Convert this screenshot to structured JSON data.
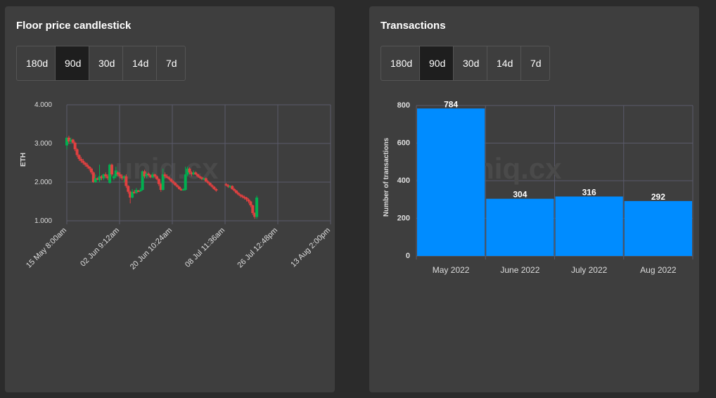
{
  "panels": {
    "candlestick": {
      "title": "Floor price candlestick",
      "tabs": [
        "180d",
        "90d",
        "30d",
        "14d",
        "7d"
      ],
      "active_tab": "90d"
    },
    "transactions": {
      "title": "Transactions",
      "tabs": [
        "180d",
        "90d",
        "30d",
        "14d",
        "7d"
      ],
      "active_tab": "90d"
    }
  },
  "watermark": "uniq.cx",
  "colors": {
    "up": "#00b050",
    "down": "#e04040",
    "bar": "#008cff",
    "grid": "#5a5a6a"
  },
  "chart_data": [
    {
      "type": "candlestick",
      "ylabel": "ETH",
      "ylim": [
        1.0,
        4.0
      ],
      "yticks": [
        "1.000",
        "2.000",
        "3.000",
        "4.000"
      ],
      "xticks": [
        "15 May 8:00am",
        "02 Jun 9:12am",
        "20 Jun 10:24am",
        "08 Jul 11:36am",
        "26 Jul 12:48pm",
        "13 Aug 2:00pm"
      ],
      "xlim_days": [
        0,
        90.25
      ],
      "candles": [
        {
          "d": 0.0,
          "o": 2.95,
          "h": 3.15,
          "l": 2.85,
          "c": 3.15
        },
        {
          "d": 0.7,
          "o": 3.15,
          "h": 3.2,
          "l": 3.0,
          "c": 3.05
        },
        {
          "d": 1.4,
          "o": 3.05,
          "h": 3.15,
          "l": 3.0,
          "c": 3.1
        },
        {
          "d": 2.1,
          "o": 3.1,
          "h": 3.12,
          "l": 3.0,
          "c": 3.02
        },
        {
          "d": 2.8,
          "o": 3.02,
          "h": 3.05,
          "l": 2.8,
          "c": 2.85
        },
        {
          "d": 3.5,
          "o": 2.85,
          "h": 2.88,
          "l": 2.65,
          "c": 2.7
        },
        {
          "d": 4.2,
          "o": 2.7,
          "h": 2.72,
          "l": 2.55,
          "c": 2.6
        },
        {
          "d": 4.9,
          "o": 2.6,
          "h": 2.65,
          "l": 2.5,
          "c": 2.55
        },
        {
          "d": 5.6,
          "o": 2.55,
          "h": 2.6,
          "l": 2.45,
          "c": 2.5
        },
        {
          "d": 6.3,
          "o": 2.5,
          "h": 2.52,
          "l": 2.4,
          "c": 2.45
        },
        {
          "d": 7.0,
          "o": 2.45,
          "h": 2.5,
          "l": 2.35,
          "c": 2.4
        },
        {
          "d": 7.7,
          "o": 2.4,
          "h": 2.42,
          "l": 2.3,
          "c": 2.35
        },
        {
          "d": 8.4,
          "o": 2.35,
          "h": 2.38,
          "l": 2.2,
          "c": 2.25
        },
        {
          "d": 9.1,
          "o": 2.25,
          "h": 2.28,
          "l": 1.98,
          "c": 2.0
        },
        {
          "d": 9.8,
          "o": 2.0,
          "h": 2.2,
          "l": 1.98,
          "c": 2.1
        },
        {
          "d": 10.5,
          "o": 2.1,
          "h": 2.12,
          "l": 2.05,
          "c": 2.08
        },
        {
          "d": 11.2,
          "o": 2.05,
          "h": 2.45,
          "l": 2.0,
          "c": 2.15
        },
        {
          "d": 11.9,
          "o": 2.15,
          "h": 2.18,
          "l": 2.05,
          "c": 2.1
        },
        {
          "d": 12.6,
          "o": 2.1,
          "h": 2.22,
          "l": 2.05,
          "c": 2.2
        },
        {
          "d": 13.3,
          "o": 2.2,
          "h": 2.25,
          "l": 2.1,
          "c": 2.15
        },
        {
          "d": 14.0,
          "o": 2.15,
          "h": 2.2,
          "l": 2.05,
          "c": 2.1
        },
        {
          "d": 14.7,
          "o": 1.98,
          "h": 2.48,
          "l": 1.96,
          "c": 2.45
        },
        {
          "d": 15.4,
          "o": 2.45,
          "h": 2.48,
          "l": 2.15,
          "c": 2.2
        },
        {
          "d": 16.1,
          "o": 2.1,
          "h": 2.2,
          "l": 2.05,
          "c": 2.15
        },
        {
          "d": 16.8,
          "o": 2.15,
          "h": 2.4,
          "l": 2.1,
          "c": 2.3
        },
        {
          "d": 17.5,
          "o": 2.25,
          "h": 2.28,
          "l": 2.15,
          "c": 2.2
        },
        {
          "d": 18.2,
          "o": 2.2,
          "h": 2.25,
          "l": 2.1,
          "c": 2.15
        },
        {
          "d": 18.9,
          "o": 2.15,
          "h": 2.2,
          "l": 2.05,
          "c": 2.1
        },
        {
          "d": 19.6,
          "o": 2.1,
          "h": 2.18,
          "l": 2.0,
          "c": 2.15
        },
        {
          "d": 20.3,
          "o": 2.15,
          "h": 2.2,
          "l": 1.85,
          "c": 1.9
        },
        {
          "d": 21.0,
          "o": 1.9,
          "h": 1.92,
          "l": 1.7,
          "c": 1.75
        },
        {
          "d": 21.7,
          "o": 1.75,
          "h": 1.78,
          "l": 1.45,
          "c": 1.6
        },
        {
          "d": 22.4,
          "o": 1.6,
          "h": 1.82,
          "l": 1.58,
          "c": 1.75
        },
        {
          "d": 23.1,
          "o": 1.75,
          "h": 1.8,
          "l": 1.7,
          "c": 1.72
        },
        {
          "d": 23.8,
          "o": 1.72,
          "h": 1.85,
          "l": 1.7,
          "c": 1.8
        },
        {
          "d": 24.5,
          "o": 1.78,
          "h": 1.8,
          "l": 1.75,
          "c": 1.77
        },
        {
          "d": 25.2,
          "o": 1.77,
          "h": 1.85,
          "l": 1.75,
          "c": 1.8
        },
        {
          "d": 25.9,
          "o": 1.8,
          "h": 2.3,
          "l": 1.78,
          "c": 2.28
        },
        {
          "d": 26.6,
          "o": 2.28,
          "h": 2.32,
          "l": 2.1,
          "c": 2.15
        },
        {
          "d": 27.3,
          "o": 2.15,
          "h": 2.25,
          "l": 2.1,
          "c": 2.22
        },
        {
          "d": 28.0,
          "o": 2.22,
          "h": 2.25,
          "l": 2.15,
          "c": 2.18
        },
        {
          "d": 28.7,
          "o": 2.18,
          "h": 2.2,
          "l": 2.1,
          "c": 2.12
        },
        {
          "d": 29.4,
          "o": 2.12,
          "h": 2.25,
          "l": 2.1,
          "c": 2.2
        },
        {
          "d": 30.1,
          "o": 2.2,
          "h": 2.22,
          "l": 2.12,
          "c": 2.15
        },
        {
          "d": 30.8,
          "o": 2.15,
          "h": 2.18,
          "l": 2.05,
          "c": 2.08
        },
        {
          "d": 31.5,
          "o": 2.08,
          "h": 2.1,
          "l": 1.9,
          "c": 1.95
        },
        {
          "d": 32.2,
          "o": 1.95,
          "h": 1.98,
          "l": 1.75,
          "c": 1.8
        },
        {
          "d": 32.9,
          "o": 1.8,
          "h": 2.35,
          "l": 1.78,
          "c": 2.2
        },
        {
          "d": 33.6,
          "o": 2.2,
          "h": 2.25,
          "l": 2.1,
          "c": 2.15
        },
        {
          "d": 34.3,
          "o": 2.15,
          "h": 2.2,
          "l": 2.1,
          "c": 2.12
        },
        {
          "d": 35.0,
          "o": 2.12,
          "h": 2.15,
          "l": 2.05,
          "c": 2.08
        },
        {
          "d": 35.7,
          "o": 2.08,
          "h": 2.1,
          "l": 2.0,
          "c": 2.02
        },
        {
          "d": 36.4,
          "o": 2.02,
          "h": 2.05,
          "l": 1.95,
          "c": 1.98
        },
        {
          "d": 37.1,
          "o": 1.98,
          "h": 2.0,
          "l": 1.9,
          "c": 1.92
        },
        {
          "d": 37.8,
          "o": 1.92,
          "h": 1.95,
          "l": 1.85,
          "c": 1.88
        },
        {
          "d": 38.5,
          "o": 1.88,
          "h": 1.9,
          "l": 1.8,
          "c": 1.82
        },
        {
          "d": 39.2,
          "o": 1.82,
          "h": 1.85,
          "l": 1.78,
          "c": 1.8
        },
        {
          "d": 39.9,
          "o": 1.8,
          "h": 1.84,
          "l": 1.78,
          "c": 1.82
        },
        {
          "d": 40.6,
          "o": 1.8,
          "h": 2.4,
          "l": 1.78,
          "c": 2.2
        },
        {
          "d": 41.3,
          "o": 2.2,
          "h": 2.4,
          "l": 2.15,
          "c": 2.35
        },
        {
          "d": 42.0,
          "o": 2.35,
          "h": 2.38,
          "l": 2.2,
          "c": 2.25
        },
        {
          "d": 42.7,
          "o": 2.25,
          "h": 2.28,
          "l": 2.15,
          "c": 2.2
        },
        {
          "d": 43.4,
          "o": 2.2,
          "h": 2.3,
          "l": 2.18,
          "c": 2.25
        },
        {
          "d": 44.1,
          "o": 2.25,
          "h": 2.28,
          "l": 2.18,
          "c": 2.2
        },
        {
          "d": 44.8,
          "o": 2.2,
          "h": 2.22,
          "l": 2.12,
          "c": 2.15
        },
        {
          "d": 45.5,
          "o": 2.15,
          "h": 2.18,
          "l": 2.08,
          "c": 2.12
        },
        {
          "d": 46.2,
          "o": 2.12,
          "h": 2.15,
          "l": 2.05,
          "c": 2.08
        },
        {
          "d": 46.9,
          "o": 2.08,
          "h": 2.12,
          "l": 2.05,
          "c": 2.1
        },
        {
          "d": 47.6,
          "o": 2.1,
          "h": 2.12,
          "l": 2.0,
          "c": 2.02
        },
        {
          "d": 48.3,
          "o": 2.02,
          "h": 2.05,
          "l": 1.95,
          "c": 1.98
        },
        {
          "d": 49.0,
          "o": 1.98,
          "h": 2.0,
          "l": 1.9,
          "c": 1.92
        },
        {
          "d": 49.7,
          "o": 1.92,
          "h": 1.95,
          "l": 1.85,
          "c": 1.88
        },
        {
          "d": 50.4,
          "o": 1.88,
          "h": 1.9,
          "l": 1.8,
          "c": 1.82
        },
        {
          "d": 51.1,
          "o": 1.82,
          "h": 1.85,
          "l": 1.75,
          "c": 1.78
        },
        {
          "d": 54.5,
          "o": 1.95,
          "h": 1.98,
          "l": 1.9,
          "c": 1.92
        },
        {
          "d": 55.2,
          "o": 1.92,
          "h": 1.95,
          "l": 1.85,
          "c": 1.88
        },
        {
          "d": 55.9,
          "o": 1.88,
          "h": 1.92,
          "l": 1.85,
          "c": 1.9
        },
        {
          "d": 56.6,
          "o": 1.9,
          "h": 1.92,
          "l": 1.8,
          "c": 1.82
        },
        {
          "d": 57.3,
          "o": 1.82,
          "h": 1.85,
          "l": 1.75,
          "c": 1.78
        },
        {
          "d": 58.0,
          "o": 1.78,
          "h": 1.8,
          "l": 1.7,
          "c": 1.72
        },
        {
          "d": 58.7,
          "o": 1.72,
          "h": 1.75,
          "l": 1.65,
          "c": 1.68
        },
        {
          "d": 59.4,
          "o": 1.68,
          "h": 1.7,
          "l": 1.6,
          "c": 1.65
        },
        {
          "d": 60.1,
          "o": 1.65,
          "h": 1.68,
          "l": 1.58,
          "c": 1.62
        },
        {
          "d": 60.8,
          "o": 1.62,
          "h": 1.65,
          "l": 1.55,
          "c": 1.6
        },
        {
          "d": 61.5,
          "o": 1.6,
          "h": 1.62,
          "l": 1.5,
          "c": 1.55
        },
        {
          "d": 62.2,
          "o": 1.55,
          "h": 1.58,
          "l": 1.45,
          "c": 1.5
        },
        {
          "d": 62.9,
          "o": 1.5,
          "h": 1.52,
          "l": 1.35,
          "c": 1.4
        },
        {
          "d": 63.6,
          "o": 1.4,
          "h": 1.42,
          "l": 1.15,
          "c": 1.2
        },
        {
          "d": 64.3,
          "o": 1.2,
          "h": 1.22,
          "l": 1.05,
          "c": 1.1
        },
        {
          "d": 65.0,
          "o": 1.1,
          "h": 1.65,
          "l": 1.05,
          "c": 1.6
        }
      ]
    },
    {
      "type": "bar",
      "categories": [
        "May 2022",
        "June 2022",
        "July 2022",
        "Aug 2022"
      ],
      "values": [
        784,
        304,
        316,
        292
      ],
      "ylabel": "Number of transactions",
      "ylim": [
        0,
        800
      ],
      "yticks": [
        0,
        200,
        400,
        600,
        800
      ]
    }
  ]
}
